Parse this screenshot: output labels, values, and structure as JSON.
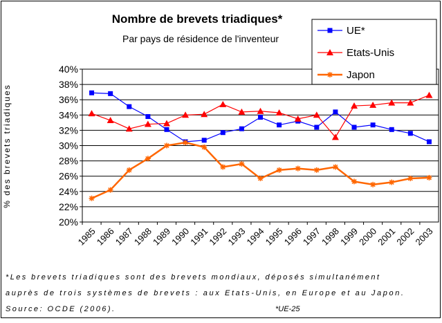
{
  "chart_data": {
    "type": "line",
    "title": "Nombre de brevets triadiques*",
    "subtitle": "Par pays de résidence de l'inventeur",
    "y_label": "% des brevets triadiques",
    "categories": [
      "1985",
      "1986",
      "1987",
      "1988",
      "1989",
      "1990",
      "1991",
      "1992",
      "1993",
      "1994",
      "1995",
      "1996",
      "1997",
      "1998",
      "1999",
      "2000",
      "2001",
      "2002",
      "2003"
    ],
    "series": [
      {
        "name": "UE*",
        "color": "#0000ff",
        "marker": "square",
        "values": [
          36.9,
          36.8,
          35.1,
          33.8,
          32.1,
          30.5,
          30.7,
          31.7,
          32.2,
          33.7,
          32.7,
          33.2,
          32.4,
          34.4,
          32.4,
          32.7,
          32.1,
          31.6,
          30.5
        ]
      },
      {
        "name": "Etats-Unis",
        "color": "#ff0000",
        "marker": "triangle",
        "values": [
          34.2,
          33.3,
          32.2,
          32.8,
          32.9,
          34.0,
          34.1,
          35.4,
          34.4,
          34.5,
          34.3,
          33.5,
          34.0,
          31.1,
          35.2,
          35.3,
          35.6,
          35.6,
          36.6
        ]
      },
      {
        "name": "Japon",
        "color": "#ff6600",
        "marker": "asterisk",
        "values": [
          23.1,
          24.2,
          26.8,
          28.3,
          30.0,
          30.4,
          29.8,
          27.2,
          27.6,
          25.7,
          26.8,
          27.0,
          26.8,
          27.2,
          25.3,
          24.9,
          25.2,
          25.7,
          25.8
        ]
      }
    ],
    "ylim": [
      20,
      40
    ],
    "yticks": [
      {
        "value": 20,
        "label": "20%"
      },
      {
        "value": 22,
        "label": "22%"
      },
      {
        "value": 24,
        "label": "24%"
      },
      {
        "value": 26,
        "label": "26%"
      },
      {
        "value": 28,
        "label": "28%"
      },
      {
        "value": 30,
        "label": "30%"
      },
      {
        "value": 32,
        "label": "32%"
      },
      {
        "value": 34,
        "label": "34%"
      },
      {
        "value": 36,
        "label": "36%"
      },
      {
        "value": 38,
        "label": "38%"
      },
      {
        "value": 40,
        "label": "40%"
      }
    ],
    "grid": true,
    "legend": "top-right",
    "footnote_lines": [
      "*Les brevets triadiques sont des brevets mondiaux, déposés simultanément",
      "auprès de trois systèmes de brevets : aux Etats-Unis, en Europe et au Japon."
    ],
    "source": "Source: OCDE (2006).",
    "note": "*UE-25"
  }
}
